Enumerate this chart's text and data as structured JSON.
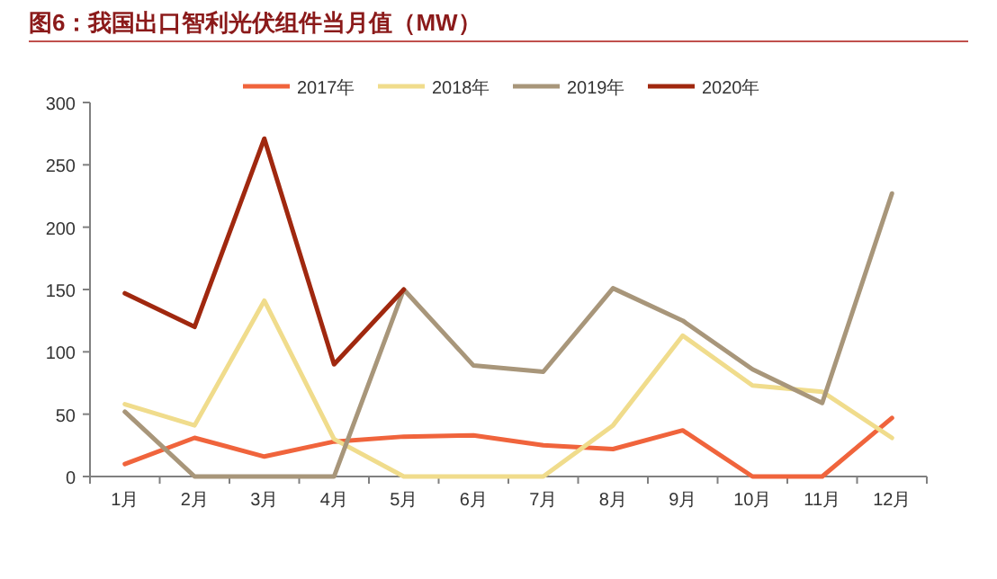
{
  "chart_data": {
    "type": "line",
    "title": "图6：我国出口智利光伏组件当月值（MW）",
    "categories": [
      "1月",
      "2月",
      "3月",
      "4月",
      "5月",
      "6月",
      "7月",
      "8月",
      "9月",
      "10月",
      "11月",
      "12月"
    ],
    "series": [
      {
        "name": "2017年",
        "color": "#f0643c",
        "values": [
          10,
          31,
          16,
          28,
          32,
          33,
          25,
          22,
          37,
          0,
          0,
          47
        ]
      },
      {
        "name": "2018年",
        "color": "#f0dc8c",
        "values": [
          58,
          41,
          141,
          30,
          0,
          0,
          0,
          41,
          113,
          73,
          68,
          31
        ]
      },
      {
        "name": "2019年",
        "color": "#a8967a",
        "values": [
          52,
          0,
          0,
          0,
          150,
          89,
          84,
          151,
          125,
          86,
          59,
          227
        ]
      },
      {
        "name": "2020年",
        "color": "#a0280f",
        "values": [
          147,
          120,
          271,
          90,
          150,
          null,
          null,
          null,
          null,
          null,
          null,
          null
        ]
      }
    ],
    "ylim": [
      0,
      300
    ],
    "yticks": [
      0,
      50,
      100,
      150,
      200,
      250,
      300
    ],
    "grid": false,
    "legend": "top",
    "marker": "none",
    "line_style": "solid"
  }
}
